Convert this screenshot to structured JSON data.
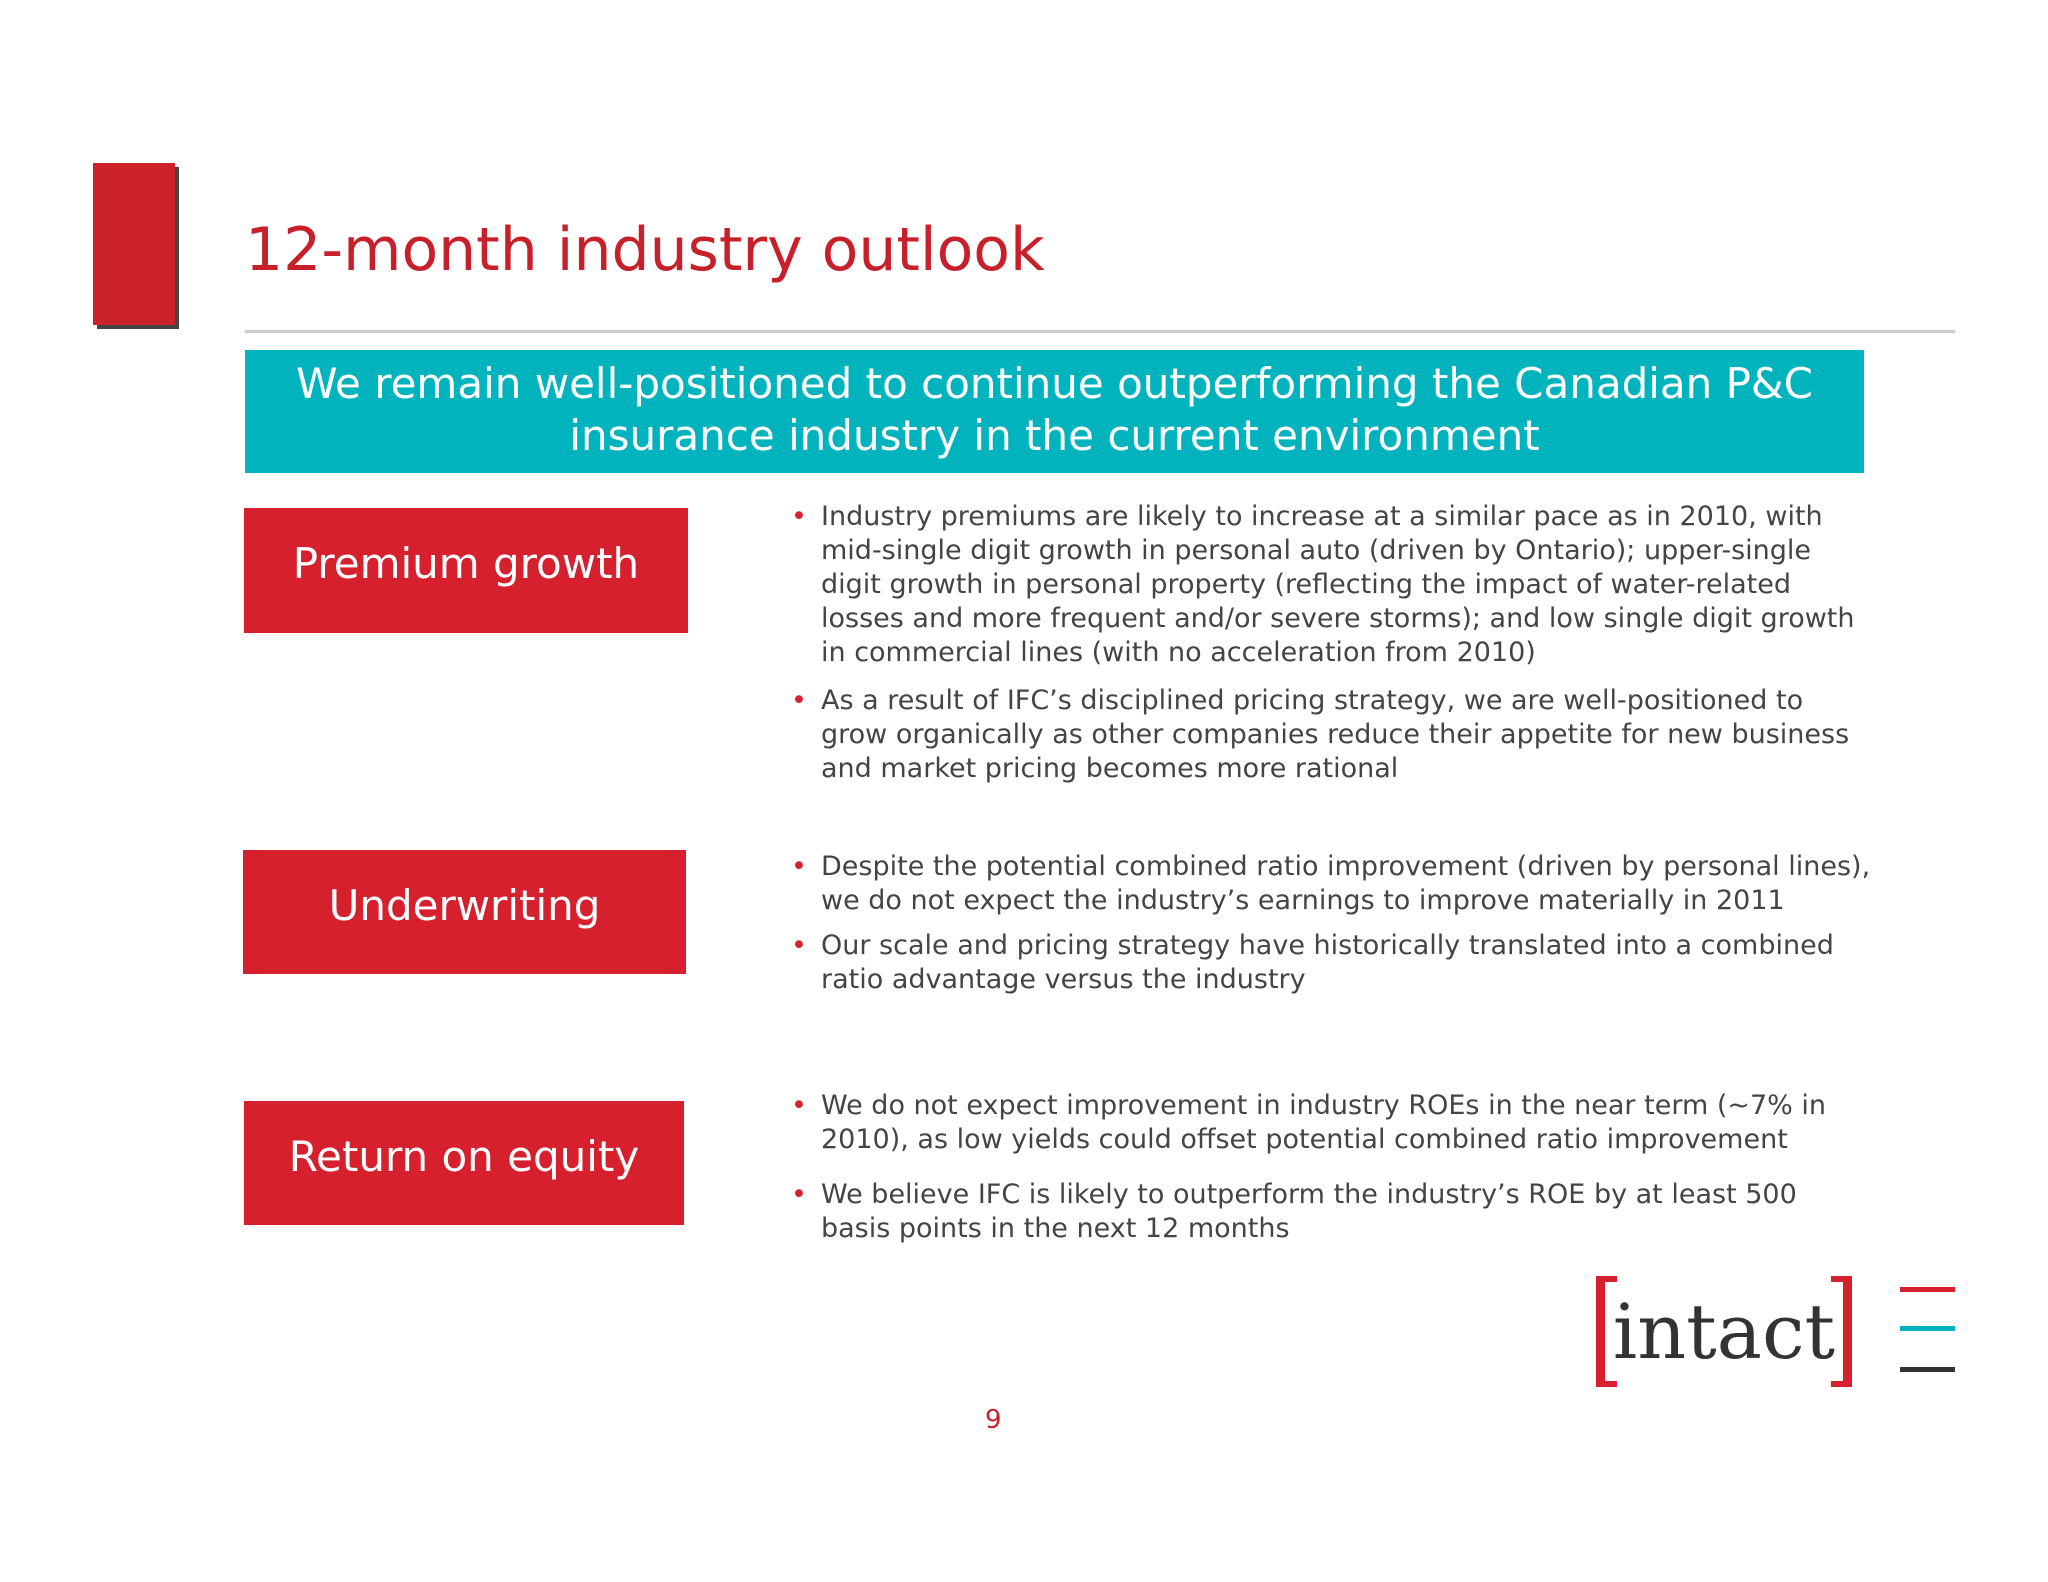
{
  "header": {
    "title": "12-month industry outlook"
  },
  "banner": {
    "line1": "We remain well-positioned to continue outperforming the Canadian P&C",
    "line2": "insurance industry in the current environment"
  },
  "sections": [
    {
      "label": "Premium growth",
      "bullets": [
        "Industry premiums are likely to increase at a similar pace as in 2010, with mid-single digit growth in personal auto (driven by Ontario); upper-single digit growth in personal property (reflecting the impact of water-related losses and more frequent and/or severe storms); and low single digit growth in commercial lines (with no acceleration from 2010)",
        "As a result of IFC’s disciplined pricing strategy, we are well-positioned to grow organically as other companies reduce their appetite for new business and market pricing becomes more rational"
      ]
    },
    {
      "label": "Underwriting",
      "bullets": [
        "Despite the potential combined ratio improvement (driven by personal lines), we do not expect the industry’s earnings to improve materially in 2011",
        "Our scale and pricing strategy have historically translated into a combined ratio advantage versus the industry"
      ]
    },
    {
      "label": "Return on equity",
      "bullets": [
        "We do not expect improvement in industry ROEs in the near term (~7% in 2010), as low yields could offset potential combined ratio improvement",
        "We believe IFC is likely to outperform the industry’s ROE by at least 500 basis points in the next 12 months"
      ]
    }
  ],
  "logo": "intact",
  "page_number": "9"
}
